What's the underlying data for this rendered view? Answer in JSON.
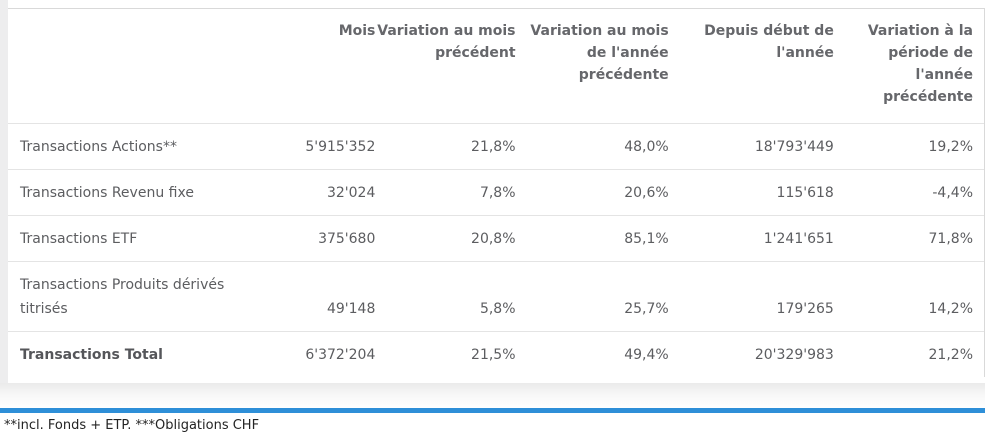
{
  "table": {
    "columns": [
      "",
      "Mois",
      "Variation au mois précédent",
      "Variation au mois de l'année précédente",
      "Depuis début de l'année",
      "Variation à la période de l'année précédente"
    ],
    "rows": [
      {
        "label": "Transactions Actions**",
        "values": [
          "5'915'352",
          "21,8%",
          "48,0%",
          "18'793'449",
          "19,2%"
        ],
        "bold": false
      },
      {
        "label": "Transactions Revenu fixe",
        "values": [
          "32'024",
          "7,8%",
          "20,6%",
          "115'618",
          "-4,4%"
        ],
        "bold": false
      },
      {
        "label": "Transactions ETF",
        "values": [
          "375'680",
          "20,8%",
          "85,1%",
          "1'241'651",
          "71,8%"
        ],
        "bold": false
      },
      {
        "label": "Transactions Produits dérivés titrisés",
        "values": [
          "49'148",
          "5,8%",
          "25,7%",
          "179'265",
          "14,2%"
        ],
        "bold": false
      },
      {
        "label": "Transactions Total",
        "values": [
          "6'372'204",
          "21,5%",
          "49,4%",
          "20'329'983",
          "21,2%"
        ],
        "bold": true
      }
    ]
  },
  "footnote": "**incl. Fonds + ETP. ***Obligations CHF",
  "colors": {
    "accent_blue": "#2e8fd8",
    "divider": "#e4e4e4",
    "header_text": "#66676b",
    "body_text": "#5c5d60",
    "footnote_text": "#232323"
  }
}
